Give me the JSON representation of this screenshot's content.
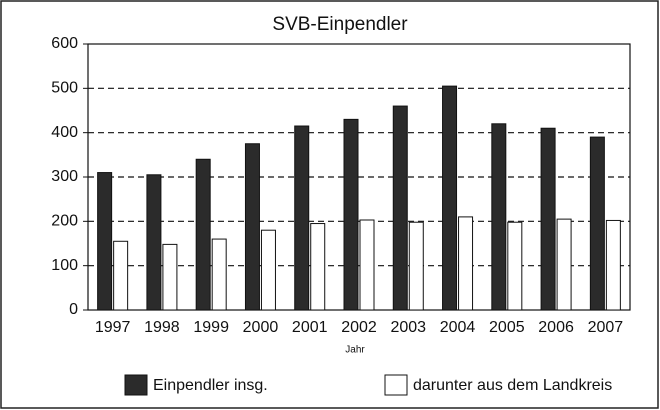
{
  "chart_data": {
    "type": "bar",
    "title": "SVB-Einpendler",
    "x_label": "Jahr",
    "categories": [
      "1997",
      "1998",
      "1999",
      "2000",
      "2001",
      "2002",
      "2003",
      "2004",
      "2005",
      "2006",
      "2007"
    ],
    "series": [
      {
        "name": "Einpendler insg.",
        "color": "#2b2b2b",
        "values": [
          310,
          305,
          340,
          375,
          415,
          430,
          460,
          505,
          420,
          410,
          390
        ]
      },
      {
        "name": "darunter aus dem Landkreis",
        "color": "#ffffff",
        "values": [
          155,
          148,
          160,
          180,
          195,
          203,
          198,
          210,
          198,
          205,
          202
        ]
      }
    ],
    "ylim": [
      0,
      600
    ],
    "yticks": [
      0,
      100,
      200,
      300,
      400,
      500,
      600
    ],
    "grid": true,
    "legend": "bottom"
  }
}
